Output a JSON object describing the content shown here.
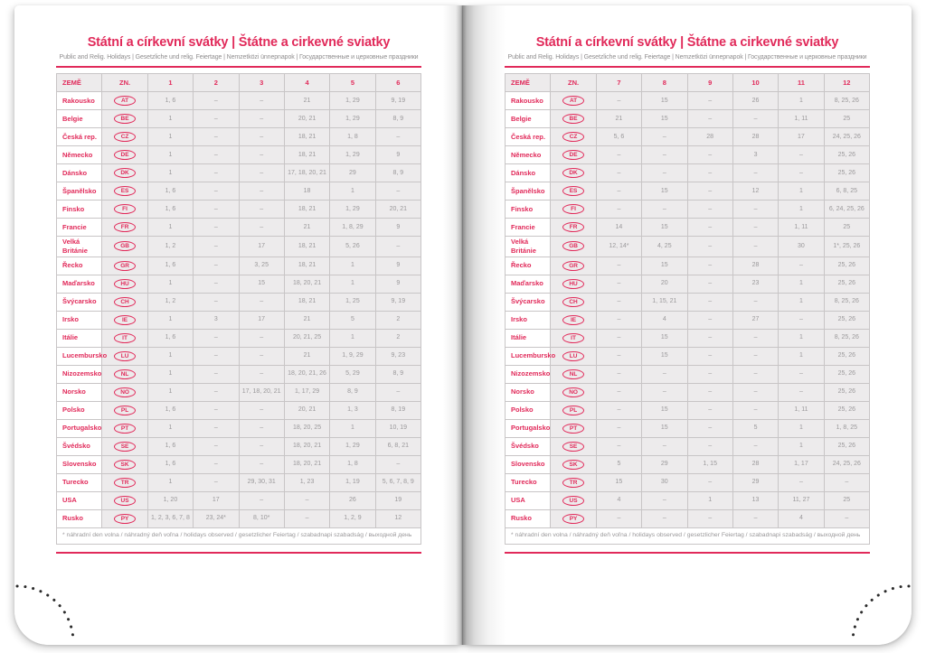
{
  "colors": {
    "accent": "#e12a5a",
    "muted_text": "#9a989a",
    "cell_fill": "#edebec",
    "grid_line": "#c8c5c6",
    "perforation_dot": "#2b2b2b"
  },
  "page": {
    "title": "Státní a církevní svátky | Štátne a cirkevné sviatky",
    "subtitle": "Public and Relig. Holidays | Gesetzliche und relig. Feiertage | Nemzetközi ünnepnapok | Государственные и церковные праздники",
    "col_country": "ZEMĚ",
    "col_code": "ZN.",
    "footnote": "* náhradní den volna / náhradný deň voľna / holidays observed / gesetzlicher Feiertag / szabadnapi szabadság / выходной день"
  },
  "left": {
    "months": [
      "1",
      "2",
      "3",
      "4",
      "5",
      "6"
    ],
    "rows": [
      {
        "country": "Rakousko",
        "code": "AT",
        "values": [
          "1, 6",
          "–",
          "–",
          "21",
          "1, 29",
          "9, 19"
        ]
      },
      {
        "country": "Belgie",
        "code": "BE",
        "values": [
          "1",
          "–",
          "–",
          "20, 21",
          "1, 29",
          "8, 9"
        ]
      },
      {
        "country": "Česká rep.",
        "code": "CZ",
        "values": [
          "1",
          "–",
          "–",
          "18, 21",
          "1, 8",
          "–"
        ]
      },
      {
        "country": "Německo",
        "code": "DE",
        "values": [
          "1",
          "–",
          "–",
          "18, 21",
          "1, 29",
          "9"
        ]
      },
      {
        "country": "Dánsko",
        "code": "DK",
        "values": [
          "1",
          "–",
          "–",
          "17, 18, 20, 21",
          "29",
          "8, 9"
        ]
      },
      {
        "country": "Španělsko",
        "code": "ES",
        "values": [
          "1, 6",
          "–",
          "–",
          "18",
          "1",
          "–"
        ]
      },
      {
        "country": "Finsko",
        "code": "FI",
        "values": [
          "1, 6",
          "–",
          "–",
          "18, 21",
          "1, 29",
          "20, 21"
        ]
      },
      {
        "country": "Francie",
        "code": "FR",
        "values": [
          "1",
          "–",
          "–",
          "21",
          "1, 8, 29",
          "9"
        ]
      },
      {
        "country": "Velká Británie",
        "code": "GB",
        "values": [
          "1, 2",
          "–",
          "17",
          "18, 21",
          "5, 26",
          "–"
        ]
      },
      {
        "country": "Řecko",
        "code": "GR",
        "values": [
          "1, 6",
          "–",
          "3, 25",
          "18, 21",
          "1",
          "9"
        ]
      },
      {
        "country": "Maďarsko",
        "code": "HU",
        "values": [
          "1",
          "–",
          "15",
          "18, 20, 21",
          "1",
          "9"
        ]
      },
      {
        "country": "Švýcarsko",
        "code": "CH",
        "values": [
          "1, 2",
          "–",
          "–",
          "18, 21",
          "1, 25",
          "9, 19"
        ]
      },
      {
        "country": "Irsko",
        "code": "IE",
        "values": [
          "1",
          "3",
          "17",
          "21",
          "5",
          "2"
        ]
      },
      {
        "country": "Itálie",
        "code": "IT",
        "values": [
          "1, 6",
          "–",
          "–",
          "20, 21, 25",
          "1",
          "2"
        ]
      },
      {
        "country": "Lucembursko",
        "code": "LU",
        "values": [
          "1",
          "–",
          "–",
          "21",
          "1, 9, 29",
          "9, 23"
        ]
      },
      {
        "country": "Nizozemsko",
        "code": "NL",
        "values": [
          "1",
          "–",
          "–",
          "18, 20, 21, 26",
          "5, 29",
          "8, 9"
        ]
      },
      {
        "country": "Norsko",
        "code": "NO",
        "values": [
          "1",
          "–",
          "17, 18, 20, 21",
          "1, 17, 29",
          "8, 9",
          "–"
        ]
      },
      {
        "country": "Polsko",
        "code": "PL",
        "values": [
          "1, 6",
          "–",
          "–",
          "20, 21",
          "1, 3",
          "8, 19"
        ]
      },
      {
        "country": "Portugalsko",
        "code": "PT",
        "values": [
          "1",
          "–",
          "–",
          "18, 20, 25",
          "1",
          "10, 19"
        ]
      },
      {
        "country": "Švédsko",
        "code": "SE",
        "values": [
          "1, 6",
          "–",
          "–",
          "18, 20, 21",
          "1, 29",
          "6, 8, 21"
        ]
      },
      {
        "country": "Slovensko",
        "code": "SK",
        "values": [
          "1, 6",
          "–",
          "–",
          "18, 20, 21",
          "1, 8",
          "–"
        ]
      },
      {
        "country": "Turecko",
        "code": "TR",
        "values": [
          "1",
          "–",
          "29, 30, 31",
          "1, 23",
          "1, 19",
          "5, 6, 7, 8, 9"
        ]
      },
      {
        "country": "USA",
        "code": "US",
        "values": [
          "1, 20",
          "17",
          "–",
          "–",
          "26",
          "19"
        ]
      },
      {
        "country": "Rusko",
        "code": "PY",
        "values": [
          "1, 2, 3, 6, 7, 8",
          "23, 24*",
          "8, 10*",
          "–",
          "1, 2, 9",
          "12"
        ]
      }
    ]
  },
  "right": {
    "months": [
      "7",
      "8",
      "9",
      "10",
      "11",
      "12"
    ],
    "rows": [
      {
        "country": "Rakousko",
        "code": "AT",
        "values": [
          "–",
          "15",
          "–",
          "26",
          "1",
          "8, 25, 26"
        ]
      },
      {
        "country": "Belgie",
        "code": "BE",
        "values": [
          "21",
          "15",
          "–",
          "–",
          "1, 11",
          "25"
        ]
      },
      {
        "country": "Česká rep.",
        "code": "CZ",
        "values": [
          "5, 6",
          "–",
          "28",
          "28",
          "17",
          "24, 25, 26"
        ]
      },
      {
        "country": "Německo",
        "code": "DE",
        "values": [
          "–",
          "–",
          "–",
          "3",
          "–",
          "25, 26"
        ]
      },
      {
        "country": "Dánsko",
        "code": "DK",
        "values": [
          "–",
          "–",
          "–",
          "–",
          "–",
          "25, 26"
        ]
      },
      {
        "country": "Španělsko",
        "code": "ES",
        "values": [
          "–",
          "15",
          "–",
          "12",
          "1",
          "6, 8, 25"
        ]
      },
      {
        "country": "Finsko",
        "code": "FI",
        "values": [
          "–",
          "–",
          "–",
          "–",
          "1",
          "6, 24, 25, 26"
        ]
      },
      {
        "country": "Francie",
        "code": "FR",
        "values": [
          "14",
          "15",
          "–",
          "–",
          "1, 11",
          "25"
        ]
      },
      {
        "country": "Velká Británie",
        "code": "GB",
        "values": [
          "12, 14*",
          "4, 25",
          "–",
          "–",
          "30",
          "1*, 25, 26"
        ]
      },
      {
        "country": "Řecko",
        "code": "GR",
        "values": [
          "–",
          "15",
          "–",
          "28",
          "–",
          "25, 26"
        ]
      },
      {
        "country": "Maďarsko",
        "code": "HU",
        "values": [
          "–",
          "20",
          "–",
          "23",
          "1",
          "25, 26"
        ]
      },
      {
        "country": "Švýcarsko",
        "code": "CH",
        "values": [
          "–",
          "1, 15, 21",
          "–",
          "–",
          "1",
          "8, 25, 26"
        ]
      },
      {
        "country": "Irsko",
        "code": "IE",
        "values": [
          "–",
          "4",
          "–",
          "27",
          "–",
          "25, 26"
        ]
      },
      {
        "country": "Itálie",
        "code": "IT",
        "values": [
          "–",
          "15",
          "–",
          "–",
          "1",
          "8, 25, 26"
        ]
      },
      {
        "country": "Lucembursko",
        "code": "LU",
        "values": [
          "–",
          "15",
          "–",
          "–",
          "1",
          "25, 26"
        ]
      },
      {
        "country": "Nizozemsko",
        "code": "NL",
        "values": [
          "–",
          "–",
          "–",
          "–",
          "–",
          "25, 26"
        ]
      },
      {
        "country": "Norsko",
        "code": "NO",
        "values": [
          "–",
          "–",
          "–",
          "–",
          "–",
          "25, 26"
        ]
      },
      {
        "country": "Polsko",
        "code": "PL",
        "values": [
          "–",
          "15",
          "–",
          "–",
          "1, 11",
          "25, 26"
        ]
      },
      {
        "country": "Portugalsko",
        "code": "PT",
        "values": [
          "–",
          "15",
          "–",
          "5",
          "1",
          "1, 8, 25"
        ]
      },
      {
        "country": "Švédsko",
        "code": "SE",
        "values": [
          "–",
          "–",
          "–",
          "–",
          "1",
          "25, 26"
        ]
      },
      {
        "country": "Slovensko",
        "code": "SK",
        "values": [
          "5",
          "29",
          "1, 15",
          "28",
          "1, 17",
          "24, 25, 26"
        ]
      },
      {
        "country": "Turecko",
        "code": "TR",
        "values": [
          "15",
          "30",
          "–",
          "29",
          "–",
          "–"
        ]
      },
      {
        "country": "USA",
        "code": "US",
        "values": [
          "4",
          "–",
          "1",
          "13",
          "11, 27",
          "25"
        ]
      },
      {
        "country": "Rusko",
        "code": "PY",
        "values": [
          "–",
          "–",
          "–",
          "–",
          "4",
          "–"
        ]
      }
    ]
  }
}
